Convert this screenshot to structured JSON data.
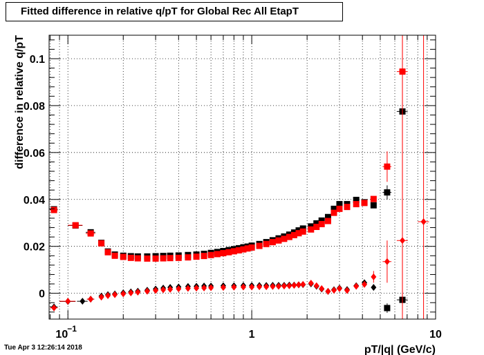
{
  "title": "Fitted difference in relative q/pT for Global Rec All EtapT",
  "timestamp": "Tue Apr  3 12:26:14 2018",
  "chart_data": {
    "type": "scatter",
    "title": "Fitted difference in relative q/pT for Global Rec All EtapT",
    "xlabel": "pT/|q| (GeV/c)",
    "ylabel": "difference in relative q/pT",
    "xscale": "log",
    "xlim": [
      0.079,
      10.0
    ],
    "ylim": [
      -0.011,
      0.11
    ],
    "grid": true,
    "x_ticks": [
      {
        "value": 0.1,
        "label": "10",
        "sup": "−1"
      },
      {
        "value": 1,
        "label": "1",
        "sup": ""
      },
      {
        "value": 10,
        "label": "10",
        "sup": ""
      }
    ],
    "y_ticks": [
      {
        "value": 0,
        "label": "0"
      },
      {
        "value": 0.02,
        "label": "0.02"
      },
      {
        "value": 0.04,
        "label": "0.04"
      },
      {
        "value": 0.06,
        "label": "0.06"
      },
      {
        "value": 0.08,
        "label": "0.08"
      },
      {
        "value": 0.1,
        "label": "0.1"
      }
    ],
    "series": [
      {
        "marker": "square",
        "color": "#000000",
        "points": [
          {
            "x": 0.084,
            "y": 0.0358,
            "xerr": 0.004,
            "yerr": 0.0008
          },
          {
            "x": 0.11,
            "y": 0.0289,
            "xerr": 0.01,
            "yerr": 0.0007
          },
          {
            "x": 0.133,
            "y": 0.026,
            "xerr": 0.008,
            "yerr": 0.0006
          },
          {
            "x": 0.152,
            "y": 0.0215,
            "yerr": 0.0005
          },
          {
            "x": 0.165,
            "y": 0.0178,
            "yerr": 0.0005
          },
          {
            "x": 0.18,
            "y": 0.0165
          },
          {
            "x": 0.2,
            "y": 0.016
          },
          {
            "x": 0.22,
            "y": 0.0158
          },
          {
            "x": 0.24,
            "y": 0.0157
          },
          {
            "x": 0.27,
            "y": 0.0157
          },
          {
            "x": 0.3,
            "y": 0.0158
          },
          {
            "x": 0.33,
            "y": 0.0159
          },
          {
            "x": 0.36,
            "y": 0.016
          },
          {
            "x": 0.4,
            "y": 0.0161
          },
          {
            "x": 0.45,
            "y": 0.0163
          },
          {
            "x": 0.5,
            "y": 0.0165
          },
          {
            "x": 0.55,
            "y": 0.0168
          },
          {
            "x": 0.6,
            "y": 0.0172
          },
          {
            "x": 0.65,
            "y": 0.0176
          },
          {
            "x": 0.7,
            "y": 0.018
          },
          {
            "x": 0.75,
            "y": 0.0184
          },
          {
            "x": 0.8,
            "y": 0.0188
          },
          {
            "x": 0.85,
            "y": 0.0192
          },
          {
            "x": 0.9,
            "y": 0.0196
          },
          {
            "x": 0.95,
            "y": 0.0199
          },
          {
            "x": 1.0,
            "y": 0.0203
          },
          {
            "x": 1.1,
            "y": 0.021
          },
          {
            "x": 1.2,
            "y": 0.0218
          },
          {
            "x": 1.3,
            "y": 0.0226
          },
          {
            "x": 1.4,
            "y": 0.0234
          },
          {
            "x": 1.5,
            "y": 0.0242
          },
          {
            "x": 1.6,
            "y": 0.025
          },
          {
            "x": 1.7,
            "y": 0.0259
          },
          {
            "x": 1.8,
            "y": 0.0268
          },
          {
            "x": 1.9,
            "y": 0.0276
          },
          {
            "x": 2.1,
            "y": 0.0285
          },
          {
            "x": 2.25,
            "y": 0.0298
          },
          {
            "x": 2.4,
            "y": 0.031
          },
          {
            "x": 2.6,
            "y": 0.0325
          },
          {
            "x": 2.8,
            "y": 0.036
          },
          {
            "x": 3.0,
            "y": 0.038
          },
          {
            "x": 3.3,
            "y": 0.038
          },
          {
            "x": 3.7,
            "y": 0.0398
          },
          {
            "x": 4.1,
            "y": 0.0388
          },
          {
            "x": 4.6,
            "y": 0.0375,
            "yerr": 0.0012
          },
          {
            "x": 5.45,
            "y": 0.043,
            "yerr": 0.003,
            "xerr": 0.3
          },
          {
            "x": 6.6,
            "y": 0.0775,
            "xerr": 0.45
          },
          {
            "x": 5.45,
            "y": -0.0063,
            "yerr": 0.002
          },
          {
            "x": 6.6,
            "y": -0.0028,
            "xerr": 0.45
          }
        ]
      },
      {
        "marker": "square",
        "color": "#ff0000",
        "points": [
          {
            "x": 0.084,
            "y": 0.0355,
            "xerr": 0.004,
            "yerr": 0.0008
          },
          {
            "x": 0.11,
            "y": 0.029,
            "xerr": 0.01,
            "yerr": 0.0007
          },
          {
            "x": 0.133,
            "y": 0.0255,
            "xerr": 0.008,
            "yerr": 0.0006
          },
          {
            "x": 0.152,
            "y": 0.0213,
            "yerr": 0.0005
          },
          {
            "x": 0.165,
            "y": 0.0175,
            "yerr": 0.0005
          },
          {
            "x": 0.18,
            "y": 0.016
          },
          {
            "x": 0.2,
            "y": 0.0155
          },
          {
            "x": 0.22,
            "y": 0.0151
          },
          {
            "x": 0.24,
            "y": 0.0149
          },
          {
            "x": 0.27,
            "y": 0.0148
          },
          {
            "x": 0.3,
            "y": 0.0148
          },
          {
            "x": 0.33,
            "y": 0.0149
          },
          {
            "x": 0.36,
            "y": 0.015
          },
          {
            "x": 0.4,
            "y": 0.0151
          },
          {
            "x": 0.45,
            "y": 0.0153
          },
          {
            "x": 0.5,
            "y": 0.0156
          },
          {
            "x": 0.55,
            "y": 0.0159
          },
          {
            "x": 0.6,
            "y": 0.0163
          },
          {
            "x": 0.65,
            "y": 0.0167
          },
          {
            "x": 0.7,
            "y": 0.0171
          },
          {
            "x": 0.75,
            "y": 0.0175
          },
          {
            "x": 0.8,
            "y": 0.0179
          },
          {
            "x": 0.85,
            "y": 0.0183
          },
          {
            "x": 0.9,
            "y": 0.0187
          },
          {
            "x": 0.95,
            "y": 0.0191
          },
          {
            "x": 1.0,
            "y": 0.0195
          },
          {
            "x": 1.1,
            "y": 0.0202
          },
          {
            "x": 1.2,
            "y": 0.021
          },
          {
            "x": 1.3,
            "y": 0.0218
          },
          {
            "x": 1.4,
            "y": 0.0225
          },
          {
            "x": 1.5,
            "y": 0.0232
          },
          {
            "x": 1.6,
            "y": 0.024
          },
          {
            "x": 1.7,
            "y": 0.0248
          },
          {
            "x": 1.8,
            "y": 0.0256
          },
          {
            "x": 1.9,
            "y": 0.0263
          },
          {
            "x": 2.1,
            "y": 0.0272
          },
          {
            "x": 2.25,
            "y": 0.0283
          },
          {
            "x": 2.4,
            "y": 0.0295
          },
          {
            "x": 2.6,
            "y": 0.0308
          },
          {
            "x": 2.8,
            "y": 0.0343
          },
          {
            "x": 3.0,
            "y": 0.036
          },
          {
            "x": 3.3,
            "y": 0.0368
          },
          {
            "x": 3.7,
            "y": 0.038
          },
          {
            "x": 4.1,
            "y": 0.0385
          },
          {
            "x": 4.6,
            "y": 0.0402,
            "yerr": 0.0012
          },
          {
            "x": 5.45,
            "y": 0.054,
            "yerr": 0.0065,
            "xerr": 0.3
          },
          {
            "x": 6.6,
            "y": 0.0945,
            "yerr": 0.1,
            "xerr": 0.45
          }
        ]
      },
      {
        "marker": "diamond",
        "color": "#000000",
        "points": [
          {
            "x": 0.084,
            "y": -0.0058,
            "xerr": 0.004
          },
          {
            "x": 0.1,
            "y": -0.0035,
            "xerr": 0.01
          },
          {
            "x": 0.12,
            "y": -0.0034,
            "xerr": 0.008
          },
          {
            "x": 0.133,
            "y": -0.0025,
            "xerr": 0.006
          },
          {
            "x": 0.152,
            "y": -0.0012
          },
          {
            "x": 0.165,
            "y": -0.0006
          },
          {
            "x": 0.18,
            "y": -0.0003
          },
          {
            "x": 0.2,
            "y": 0.0002
          },
          {
            "x": 0.22,
            "y": 0.0006
          },
          {
            "x": 0.24,
            "y": 0.0009
          },
          {
            "x": 0.27,
            "y": 0.0013
          },
          {
            "x": 0.3,
            "y": 0.0018
          },
          {
            "x": 0.33,
            "y": 0.0022
          },
          {
            "x": 0.36,
            "y": 0.0025
          },
          {
            "x": 0.4,
            "y": 0.0027
          },
          {
            "x": 0.45,
            "y": 0.0029
          },
          {
            "x": 0.5,
            "y": 0.003
          },
          {
            "x": 0.55,
            "y": 0.0031
          },
          {
            "x": 0.6,
            "y": 0.0031
          },
          {
            "x": 0.7,
            "y": 0.0032
          },
          {
            "x": 0.8,
            "y": 0.0032
          },
          {
            "x": 0.9,
            "y": 0.0033
          },
          {
            "x": 1.0,
            "y": 0.0033
          },
          {
            "x": 1.1,
            "y": 0.0033
          },
          {
            "x": 1.2,
            "y": 0.0033
          },
          {
            "x": 1.3,
            "y": 0.0034
          },
          {
            "x": 1.4,
            "y": 0.0034
          },
          {
            "x": 1.5,
            "y": 0.0034
          },
          {
            "x": 1.6,
            "y": 0.0035
          },
          {
            "x": 1.7,
            "y": 0.0035
          },
          {
            "x": 1.8,
            "y": 0.0036
          },
          {
            "x": 1.9,
            "y": 0.0037
          },
          {
            "x": 2.1,
            "y": 0.004
          },
          {
            "x": 2.25,
            "y": 0.003
          },
          {
            "x": 2.4,
            "y": 0.0018
          },
          {
            "x": 2.6,
            "y": 0.0008
          },
          {
            "x": 2.8,
            "y": 0.0015
          },
          {
            "x": 3.0,
            "y": 0.0022
          },
          {
            "x": 3.3,
            "y": 0.0016
          },
          {
            "x": 3.7,
            "y": 0.0032
          },
          {
            "x": 4.1,
            "y": 0.0045
          },
          {
            "x": 4.6,
            "y": 0.0025
          }
        ]
      },
      {
        "marker": "diamond",
        "color": "#ff0000",
        "points": [
          {
            "x": 0.084,
            "y": -0.0062,
            "xerr": 0.004
          },
          {
            "x": 0.1,
            "y": -0.0034,
            "xerr": 0.01
          },
          {
            "x": 0.133,
            "y": -0.0025,
            "xerr": 0.006
          },
          {
            "x": 0.152,
            "y": -0.0016
          },
          {
            "x": 0.165,
            "y": -0.001
          },
          {
            "x": 0.18,
            "y": -0.0006
          },
          {
            "x": 0.2,
            "y": -0.0002
          },
          {
            "x": 0.22,
            "y": 0.0002
          },
          {
            "x": 0.24,
            "y": 0.0005
          },
          {
            "x": 0.27,
            "y": 0.0009
          },
          {
            "x": 0.3,
            "y": 0.0012
          },
          {
            "x": 0.33,
            "y": 0.0015
          },
          {
            "x": 0.36,
            "y": 0.0017
          },
          {
            "x": 0.4,
            "y": 0.0019
          },
          {
            "x": 0.45,
            "y": 0.0021
          },
          {
            "x": 0.5,
            "y": 0.0022
          },
          {
            "x": 0.55,
            "y": 0.0023
          },
          {
            "x": 0.6,
            "y": 0.0024
          },
          {
            "x": 0.7,
            "y": 0.0025
          },
          {
            "x": 0.8,
            "y": 0.0026
          },
          {
            "x": 0.9,
            "y": 0.0027
          },
          {
            "x": 1.0,
            "y": 0.0027
          },
          {
            "x": 1.1,
            "y": 0.0028
          },
          {
            "x": 1.2,
            "y": 0.0028
          },
          {
            "x": 1.3,
            "y": 0.0029
          },
          {
            "x": 1.4,
            "y": 0.003
          },
          {
            "x": 1.5,
            "y": 0.0031
          },
          {
            "x": 1.6,
            "y": 0.0032
          },
          {
            "x": 1.7,
            "y": 0.0034
          },
          {
            "x": 1.8,
            "y": 0.0036
          },
          {
            "x": 1.9,
            "y": 0.0038
          },
          {
            "x": 2.1,
            "y": 0.0043
          },
          {
            "x": 2.25,
            "y": 0.0032
          },
          {
            "x": 2.4,
            "y": 0.002
          },
          {
            "x": 2.6,
            "y": 0.0008
          },
          {
            "x": 2.8,
            "y": 0.0013
          },
          {
            "x": 3.0,
            "y": 0.002
          },
          {
            "x": 3.3,
            "y": 0.0012
          },
          {
            "x": 3.7,
            "y": 0.003
          },
          {
            "x": 4.1,
            "y": 0.0038
          },
          {
            "x": 4.6,
            "y": 0.007,
            "yerr": 0.0025
          },
          {
            "x": 5.45,
            "y": 0.0135,
            "yerr": 0.009,
            "xerr": 0.3
          },
          {
            "x": 6.6,
            "y": 0.0225,
            "yerr": 0.12,
            "xerr": 0.45
          },
          {
            "x": 8.6,
            "y": 0.0305,
            "yerr": 0.12,
            "xerr": 0.6
          }
        ]
      }
    ]
  }
}
